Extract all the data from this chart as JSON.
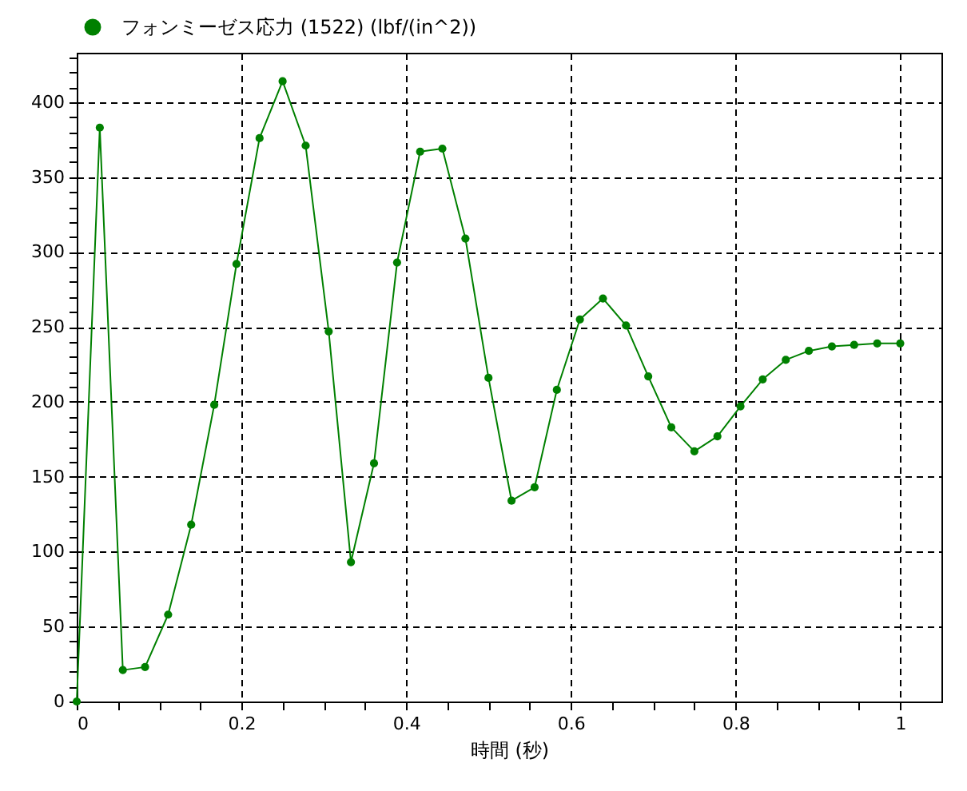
{
  "chart_data": {
    "type": "line",
    "xlabel": "時間 (秒)",
    "x": [
      0,
      0.028,
      0.056,
      0.083,
      0.111,
      0.139,
      0.167,
      0.194,
      0.222,
      0.25,
      0.278,
      0.306,
      0.333,
      0.361,
      0.389,
      0.417,
      0.444,
      0.472,
      0.5,
      0.528,
      0.556,
      0.583,
      0.611,
      0.639,
      0.667,
      0.694,
      0.722,
      0.75,
      0.778,
      0.806,
      0.833,
      0.861,
      0.889,
      0.917,
      0.944,
      0.972,
      1
    ],
    "series": [
      {
        "name": "フォンミーゼス応力 (1522) (lbf/(in^2))",
        "color": "#008000",
        "values": [
          0,
          383,
          21,
          23,
          58,
          118,
          198,
          292,
          376,
          414,
          371,
          247,
          93,
          159,
          293,
          367,
          369,
          309,
          216,
          134,
          143,
          208,
          255,
          269,
          251,
          217,
          183,
          167,
          177,
          197,
          215,
          228,
          234,
          237,
          238,
          239,
          239
        ]
      }
    ],
    "xlim": [
      0,
      1.05
    ],
    "ylim": [
      0,
      433
    ],
    "xticks": [
      0,
      {
        "value": 0.05,
        "label": null
      },
      {
        "value": 0.1,
        "label": null
      },
      {
        "value": 0.15,
        "label": null
      },
      0.2,
      {
        "value": 0.25,
        "label": null
      },
      {
        "value": 0.3,
        "label": null
      },
      {
        "value": 0.35,
        "label": null
      },
      0.4,
      {
        "value": 0.45,
        "label": null
      },
      {
        "value": 0.5,
        "label": null
      },
      {
        "value": 0.55,
        "label": null
      },
      0.6,
      {
        "value": 0.65,
        "label": null
      },
      {
        "value": 0.7,
        "label": null
      },
      {
        "value": 0.75,
        "label": null
      },
      0.8,
      {
        "value": 0.85,
        "label": null
      },
      {
        "value": 0.9,
        "label": null
      },
      {
        "value": 0.95,
        "label": null
      },
      1
    ],
    "yticks": [
      0,
      {
        "value": 10,
        "label": null
      },
      {
        "value": 20,
        "label": null
      },
      {
        "value": 30,
        "label": null
      },
      {
        "value": 40,
        "label": null
      },
      50,
      {
        "value": 60,
        "label": null
      },
      {
        "value": 70,
        "label": null
      },
      {
        "value": 80,
        "label": null
      },
      {
        "value": 90,
        "label": null
      },
      100,
      {
        "value": 110,
        "label": null
      },
      {
        "value": 120,
        "label": null
      },
      {
        "value": 130,
        "label": null
      },
      {
        "value": 140,
        "label": null
      },
      150,
      {
        "value": 160,
        "label": null
      },
      {
        "value": 170,
        "label": null
      },
      {
        "value": 180,
        "label": null
      },
      {
        "value": 190,
        "label": null
      },
      200,
      {
        "value": 210,
        "label": null
      },
      {
        "value": 220,
        "label": null
      },
      {
        "value": 230,
        "label": null
      },
      {
        "value": 240,
        "label": null
      },
      250,
      {
        "value": 260,
        "label": null
      },
      {
        "value": 270,
        "label": null
      },
      {
        "value": 280,
        "label": null
      },
      {
        "value": 290,
        "label": null
      },
      300,
      {
        "value": 310,
        "label": null
      },
      {
        "value": 320,
        "label": null
      },
      {
        "value": 330,
        "label": null
      },
      {
        "value": 340,
        "label": null
      },
      350,
      {
        "value": 360,
        "label": null
      },
      {
        "value": 370,
        "label": null
      },
      {
        "value": 380,
        "label": null
      },
      {
        "value": 390,
        "label": null
      },
      400,
      {
        "value": 410,
        "label": null
      },
      {
        "value": 420,
        "label": null
      },
      {
        "value": 430,
        "label": null
      }
    ],
    "grid": true,
    "legend": "top left",
    "marker": "circle",
    "line_style": "solid"
  }
}
